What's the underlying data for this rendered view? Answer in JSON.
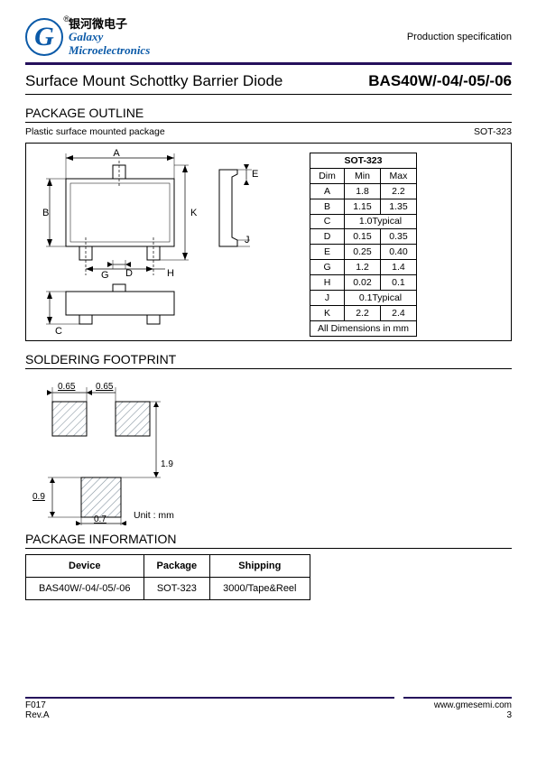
{
  "header": {
    "logo_letter": "G",
    "logo_reg": "®",
    "logo_cn": "银河微电子",
    "logo_en_1": "Galaxy",
    "logo_en_2": "Microelectronics",
    "spec_label": "Production specification"
  },
  "title": {
    "product_title": "Surface Mount Schottky Barrier Diode",
    "product_code": "BAS40W/-04/-05/-06"
  },
  "package_outline": {
    "heading": "PACKAGE OUTLINE",
    "subtitle_left": "Plastic surface mounted package",
    "subtitle_right": "SOT-323",
    "table_title": "SOT-323",
    "cols": [
      "Dim",
      "Min",
      "Max"
    ],
    "rows": [
      {
        "dim": "A",
        "min": "1.8",
        "max": "2.2"
      },
      {
        "dim": "B",
        "min": "1.15",
        "max": "1.35"
      },
      {
        "dim": "C",
        "span": "1.0Typical"
      },
      {
        "dim": "D",
        "min": "0.15",
        "max": "0.35"
      },
      {
        "dim": "E",
        "min": "0.25",
        "max": "0.40"
      },
      {
        "dim": "G",
        "min": "1.2",
        "max": "1.4"
      },
      {
        "dim": "H",
        "min": "0.02",
        "max": "0.1"
      },
      {
        "dim": "J",
        "span": "0.1Typical"
      },
      {
        "dim": "K",
        "min": "2.2",
        "max": "2.4"
      }
    ],
    "footer_note": "All Dimensions in mm",
    "diagram": {
      "labels": [
        "A",
        "B",
        "C",
        "D",
        "E",
        "G",
        "H",
        "J",
        "K"
      ],
      "stroke": "#000000",
      "body_fill": "#ffffff"
    }
  },
  "soldering_footprint": {
    "heading": "SOLDERING FOOTPRINT",
    "unit_label": "Unit : mm",
    "dims": {
      "pad_w": "0.65",
      "pitch": "0.65",
      "h": "1.9",
      "bottom_h": "0.9",
      "bottom_w": "0.7"
    },
    "hatch_color": "#8a98a3",
    "stroke": "#000000"
  },
  "package_info": {
    "heading": "PACKAGE INFORMATION",
    "cols": [
      "Device",
      "Package",
      "Shipping"
    ],
    "rows": [
      [
        "BAS40W/-04/-05/-06",
        "SOT-323",
        "3000/Tape&Reel"
      ]
    ]
  },
  "footer": {
    "left1": "F017",
    "left2": "Rev.A",
    "right1": "www.gmesemi.com",
    "right2": "3"
  }
}
